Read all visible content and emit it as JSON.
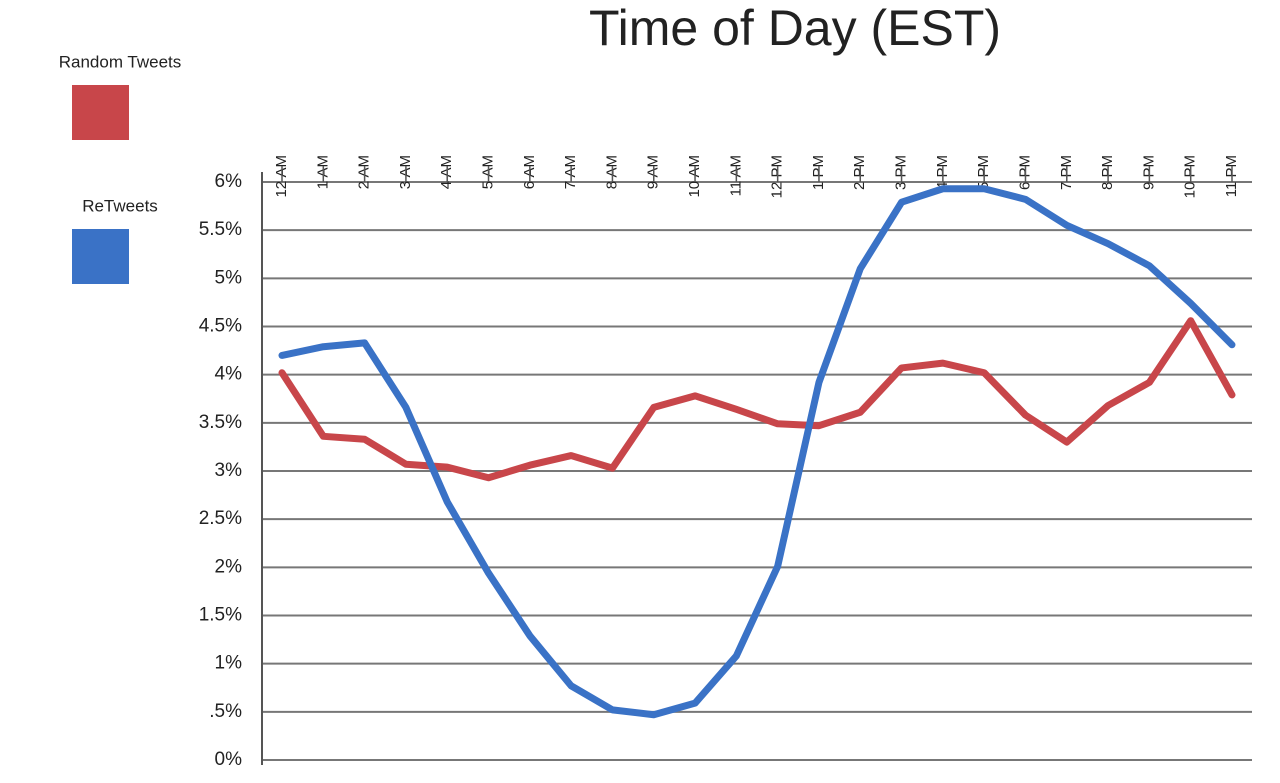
{
  "chart_data": {
    "type": "line",
    "title": "Time of Day (EST)",
    "categories": [
      "12 AM",
      "1 AM",
      "2 AM",
      "3 AM",
      "4 AM",
      "5 AM",
      "6 AM",
      "7 AM",
      "8 AM",
      "9 AM",
      "10 AM",
      "11 AM",
      "12 PM",
      "1 PM",
      "2 PM",
      "3 PM",
      "4 PM",
      "5 PM",
      "6 PM",
      "7 PM",
      "8 PM",
      "9 PM",
      "10 PM",
      "11 PM"
    ],
    "series": [
      {
        "name": "Random Tweets",
        "color": "#c8464a",
        "values": [
          4.02,
          3.36,
          3.33,
          3.07,
          3.04,
          2.93,
          3.06,
          3.16,
          3.03,
          3.66,
          3.78,
          3.64,
          3.49,
          3.47,
          3.61,
          4.07,
          4.12,
          4.02,
          3.58,
          3.3,
          3.68,
          3.92,
          4.56,
          3.79
        ]
      },
      {
        "name": "ReTweets",
        "color": "#3a72c6",
        "values": [
          4.2,
          4.29,
          4.33,
          3.66,
          2.68,
          1.94,
          1.29,
          0.77,
          0.52,
          0.47,
          0.59,
          1.08,
          2.01,
          3.92,
          5.1,
          5.79,
          5.93,
          5.93,
          5.82,
          5.55,
          5.36,
          5.13,
          4.74,
          4.31
        ]
      }
    ],
    "ylim": [
      0,
      6
    ],
    "yticks": [
      {
        "value": 0,
        "label": "0%"
      },
      {
        "value": 0.5,
        "label": ".5%"
      },
      {
        "value": 1,
        "label": "1%"
      },
      {
        "value": 1.5,
        "label": "1.5%"
      },
      {
        "value": 2,
        "label": "2%"
      },
      {
        "value": 2.5,
        "label": "2.5%"
      },
      {
        "value": 3,
        "label": "3%"
      },
      {
        "value": 3.5,
        "label": "3.5%"
      },
      {
        "value": 4,
        "label": "4%"
      },
      {
        "value": 4.5,
        "label": "4.5%"
      },
      {
        "value": 5,
        "label": "5%"
      },
      {
        "value": 5.5,
        "label": "5.5%"
      },
      {
        "value": 6,
        "label": "6%"
      }
    ],
    "grid": true
  }
}
